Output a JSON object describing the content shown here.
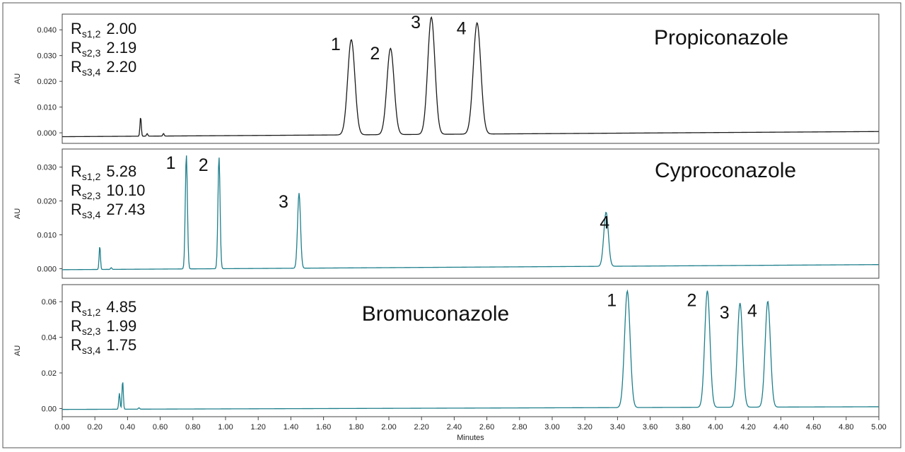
{
  "chart_data": [
    {
      "type": "line",
      "title": "Propiconazole",
      "ylabel": "AU",
      "ylim": [
        -0.003,
        0.045
      ],
      "yticks": [
        "0.000",
        "0.010",
        "0.020",
        "0.030",
        "0.040"
      ],
      "yticks_values": [
        0,
        0.01,
        0.02,
        0.03,
        0.04
      ],
      "color": "#1a1a1a",
      "resolution": [
        {
          "sub": "s1,2",
          "value": "2.00"
        },
        {
          "sub": "s2,3",
          "value": "2.19"
        },
        {
          "sub": "s3,4",
          "value": "2.20"
        }
      ],
      "peaks": [
        {
          "label": "1",
          "t": 1.77,
          "h": 0.037
        },
        {
          "label": "2",
          "t": 2.01,
          "h": 0.0335
        },
        {
          "label": "3",
          "t": 2.26,
          "h": 0.0455
        },
        {
          "label": "4",
          "t": 2.54,
          "h": 0.0432
        }
      ],
      "artifacts": [
        {
          "t": 0.48,
          "h": 0.0075
        },
        {
          "t": 0.52,
          "h": 0.001
        },
        {
          "t": 0.62,
          "h": 0.001
        }
      ],
      "baseline": {
        "start": -0.0015,
        "end": 0.0005
      }
    },
    {
      "type": "line",
      "title": "Cyproconazole",
      "ylabel": "AU",
      "ylim": [
        -0.002,
        0.0345
      ],
      "yticks": [
        "0.000",
        "0.010",
        "0.020",
        "0.030"
      ],
      "yticks_values": [
        0,
        0.01,
        0.02,
        0.03
      ],
      "color": "#1e7f8c",
      "resolution": [
        {
          "sub": "s1,2",
          "value": "5.28"
        },
        {
          "sub": "s2,3",
          "value": "10.10"
        },
        {
          "sub": "s3,4",
          "value": "27.43"
        }
      ],
      "peaks": [
        {
          "label": "1",
          "t": 0.76,
          "h": 0.0337
        },
        {
          "label": "2",
          "t": 0.96,
          "h": 0.033
        },
        {
          "label": "3",
          "t": 1.45,
          "h": 0.0222
        },
        {
          "label": "4",
          "t": 3.33,
          "h": 0.016
        }
      ],
      "artifacts": [
        {
          "t": 0.23,
          "h": 0.007
        },
        {
          "t": 0.3,
          "h": 0.0005
        }
      ],
      "baseline": {
        "start": -0.0003,
        "end": 0.0012
      }
    },
    {
      "type": "line",
      "title": "Bromuconazole",
      "ylabel": "AU",
      "ylim": [
        -0.003,
        0.068
      ],
      "yticks": [
        "0.00",
        "0.02",
        "0.04",
        "0.06"
      ],
      "yticks_values": [
        0,
        0.02,
        0.04,
        0.06
      ],
      "color": "#1e7f8c",
      "resolution": [
        {
          "sub": "s1,2",
          "value": "4.85"
        },
        {
          "sub": "s2,3",
          "value": "1.99"
        },
        {
          "sub": "s3,4",
          "value": "1.75"
        }
      ],
      "peaks": [
        {
          "label": "1",
          "t": 3.46,
          "h": 0.0655
        },
        {
          "label": "2",
          "t": 3.95,
          "h": 0.0655
        },
        {
          "label": "3",
          "t": 4.15,
          "h": 0.0585
        },
        {
          "label": "4",
          "t": 4.32,
          "h": 0.0595
        }
      ],
      "artifacts": [
        {
          "t": 0.35,
          "h": 0.009
        },
        {
          "t": 0.37,
          "h": 0.016
        },
        {
          "t": 0.47,
          "h": 0.0008
        }
      ],
      "baseline": {
        "start": -0.0005,
        "end": 0.001
      }
    }
  ],
  "xaxis": {
    "xlabel": "Minutes",
    "xlim": [
      0,
      5
    ],
    "xticks": [
      "0.00",
      "0.20",
      "0.40",
      "0.60",
      "0.80",
      "1.00",
      "1.20",
      "1.40",
      "1.60",
      "1.80",
      "2.00",
      "2.20",
      "2.40",
      "2.60",
      "2.80",
      "3.00",
      "3.20",
      "3.40",
      "3.60",
      "3.80",
      "4.00",
      "4.20",
      "4.40",
      "4.60",
      "4.80",
      "5.00"
    ]
  }
}
